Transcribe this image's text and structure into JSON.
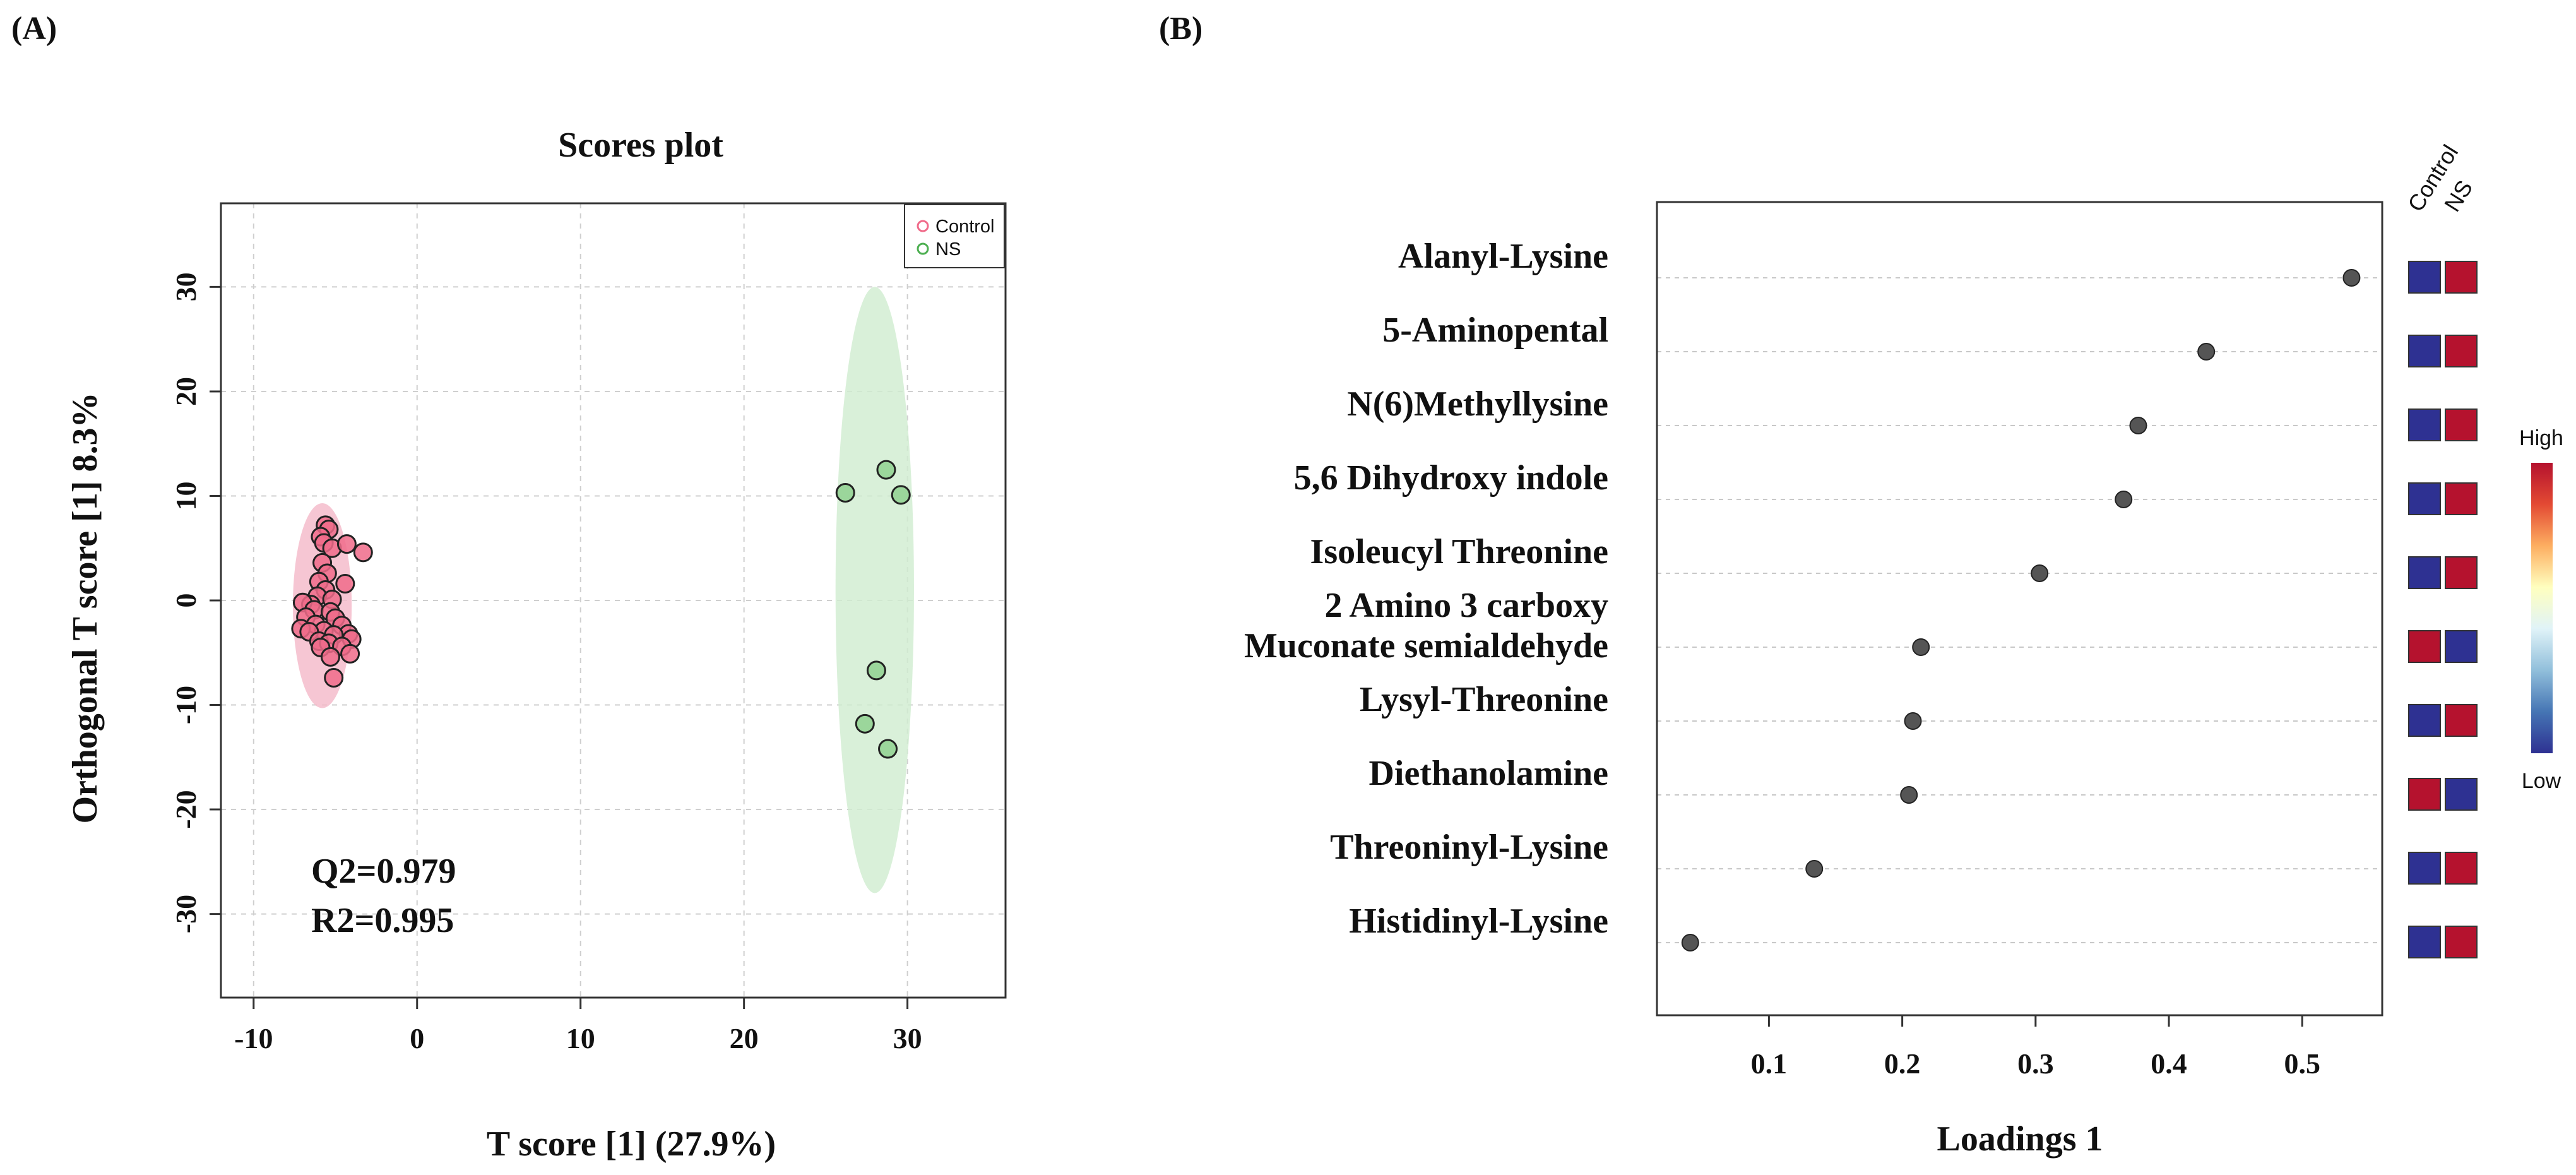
{
  "panels": {
    "a_label": "(A)",
    "b_label": "(B)"
  },
  "chart_data": [
    {
      "type": "scatter",
      "title": "Scores plot",
      "xlabel": "T score [1] (27.9%)",
      "ylabel": "Orthogonal T score [1] 8.3%",
      "xlim": [
        -12,
        36
      ],
      "ylim": [
        -38,
        38
      ],
      "xticks": [
        -10,
        0,
        10,
        20,
        30
      ],
      "yticks": [
        -30,
        -20,
        -10,
        0,
        10,
        20,
        30
      ],
      "xtick_labels": [
        "-10",
        "0",
        "10",
        "20",
        "30"
      ],
      "ytick_labels": [
        "-30",
        "-20",
        "-10",
        "0",
        "10",
        "20",
        "30"
      ],
      "grid": true,
      "legend_position": "top-right",
      "annotations": [
        "Q2=0.979",
        "R2=0.995"
      ],
      "series": [
        {
          "name": "Control",
          "color": "#f06b8a",
          "fill": "#f06b8a",
          "ellipse": {
            "cx": -5.8,
            "cy": -0.5,
            "rx": 1.8,
            "ry": 9.8,
            "color": "#f4b8c8"
          },
          "points": [
            [
              -5.6,
              7.2
            ],
            [
              -5.4,
              6.8
            ],
            [
              -5.9,
              6.1
            ],
            [
              -5.7,
              5.5
            ],
            [
              -5.2,
              5.0
            ],
            [
              -4.3,
              5.4
            ],
            [
              -3.3,
              4.6
            ],
            [
              -5.8,
              3.6
            ],
            [
              -5.5,
              2.6
            ],
            [
              -6.0,
              1.8
            ],
            [
              -4.4,
              1.6
            ],
            [
              -5.6,
              1.0
            ],
            [
              -6.1,
              0.4
            ],
            [
              -5.2,
              0.1
            ],
            [
              -6.5,
              -0.4
            ],
            [
              -7.0,
              -0.2
            ],
            [
              -6.3,
              -0.9
            ],
            [
              -5.3,
              -1.1
            ],
            [
              -6.8,
              -1.6
            ],
            [
              -5.0,
              -1.7
            ],
            [
              -6.2,
              -2.3
            ],
            [
              -4.6,
              -2.4
            ],
            [
              -7.1,
              -2.7
            ],
            [
              -5.7,
              -2.9
            ],
            [
              -6.6,
              -3.0
            ],
            [
              -4.2,
              -3.2
            ],
            [
              -5.1,
              -3.3
            ],
            [
              -4.0,
              -3.7
            ],
            [
              -6.0,
              -3.9
            ],
            [
              -5.4,
              -4.1
            ],
            [
              -4.6,
              -4.4
            ],
            [
              -5.9,
              -4.5
            ],
            [
              -4.1,
              -5.1
            ],
            [
              -5.3,
              -5.4
            ],
            [
              -5.1,
              -7.4
            ]
          ]
        },
        {
          "name": "NS",
          "color": "#4caf50",
          "fill": "#8fd18f",
          "ellipse": {
            "cx": 28.0,
            "cy": 1.0,
            "rx": 2.4,
            "ry": 29.0,
            "color": "#cfeccf"
          },
          "points": [
            [
              26.2,
              10.3
            ],
            [
              28.7,
              12.5
            ],
            [
              29.6,
              10.1
            ],
            [
              28.1,
              -6.7
            ],
            [
              27.4,
              -11.8
            ],
            [
              28.8,
              -14.2
            ]
          ]
        }
      ]
    },
    {
      "type": "dot",
      "xlabel": "Loadings 1",
      "xlim": [
        0.016,
        0.56
      ],
      "xticks": [
        0.1,
        0.2,
        0.3,
        0.4,
        0.5
      ],
      "xtick_labels": [
        "0.1",
        "0.2",
        "0.3",
        "0.4",
        "0.5"
      ],
      "categories": [
        [
          "Alanyl-Lysine"
        ],
        [
          "5-Aminopental"
        ],
        [
          "N(6)Methyllysine"
        ],
        [
          "5,6 Dihydroxy indole"
        ],
        [
          "Isoleucyl Threonine"
        ],
        [
          "2 Amino 3 carboxy",
          "Muconate semialdehyde"
        ],
        [
          "Lysyl-Threonine"
        ],
        [
          "Diethanolamine"
        ],
        [
          "Threoninyl-Lysine"
        ],
        [
          "Histidinyl-Lysine"
        ]
      ],
      "values": [
        0.537,
        0.428,
        0.377,
        0.366,
        0.303,
        0.214,
        0.208,
        0.205,
        0.134,
        0.041
      ],
      "point_color": "#555555",
      "heatmap": {
        "columns": [
          "Control",
          "NS"
        ],
        "levels": [
          [
            "low",
            "high"
          ],
          [
            "low",
            "high"
          ],
          [
            "low",
            "high"
          ],
          [
            "low",
            "high"
          ],
          [
            "low",
            "high"
          ],
          [
            "high",
            "low"
          ],
          [
            "low",
            "high"
          ],
          [
            "high",
            "low"
          ],
          [
            "low",
            "high"
          ],
          [
            "low",
            "high"
          ]
        ],
        "colors": {
          "low": "#2e3192",
          "high": "#b5122e"
        }
      },
      "colorbar": {
        "high_label": "High",
        "low_label": "Low",
        "stops": [
          "#b5122e",
          "#e34a33",
          "#fdae61",
          "#ffffbf",
          "#e0f3f8",
          "#91bfdb",
          "#4575b4",
          "#2e3192"
        ]
      }
    }
  ]
}
